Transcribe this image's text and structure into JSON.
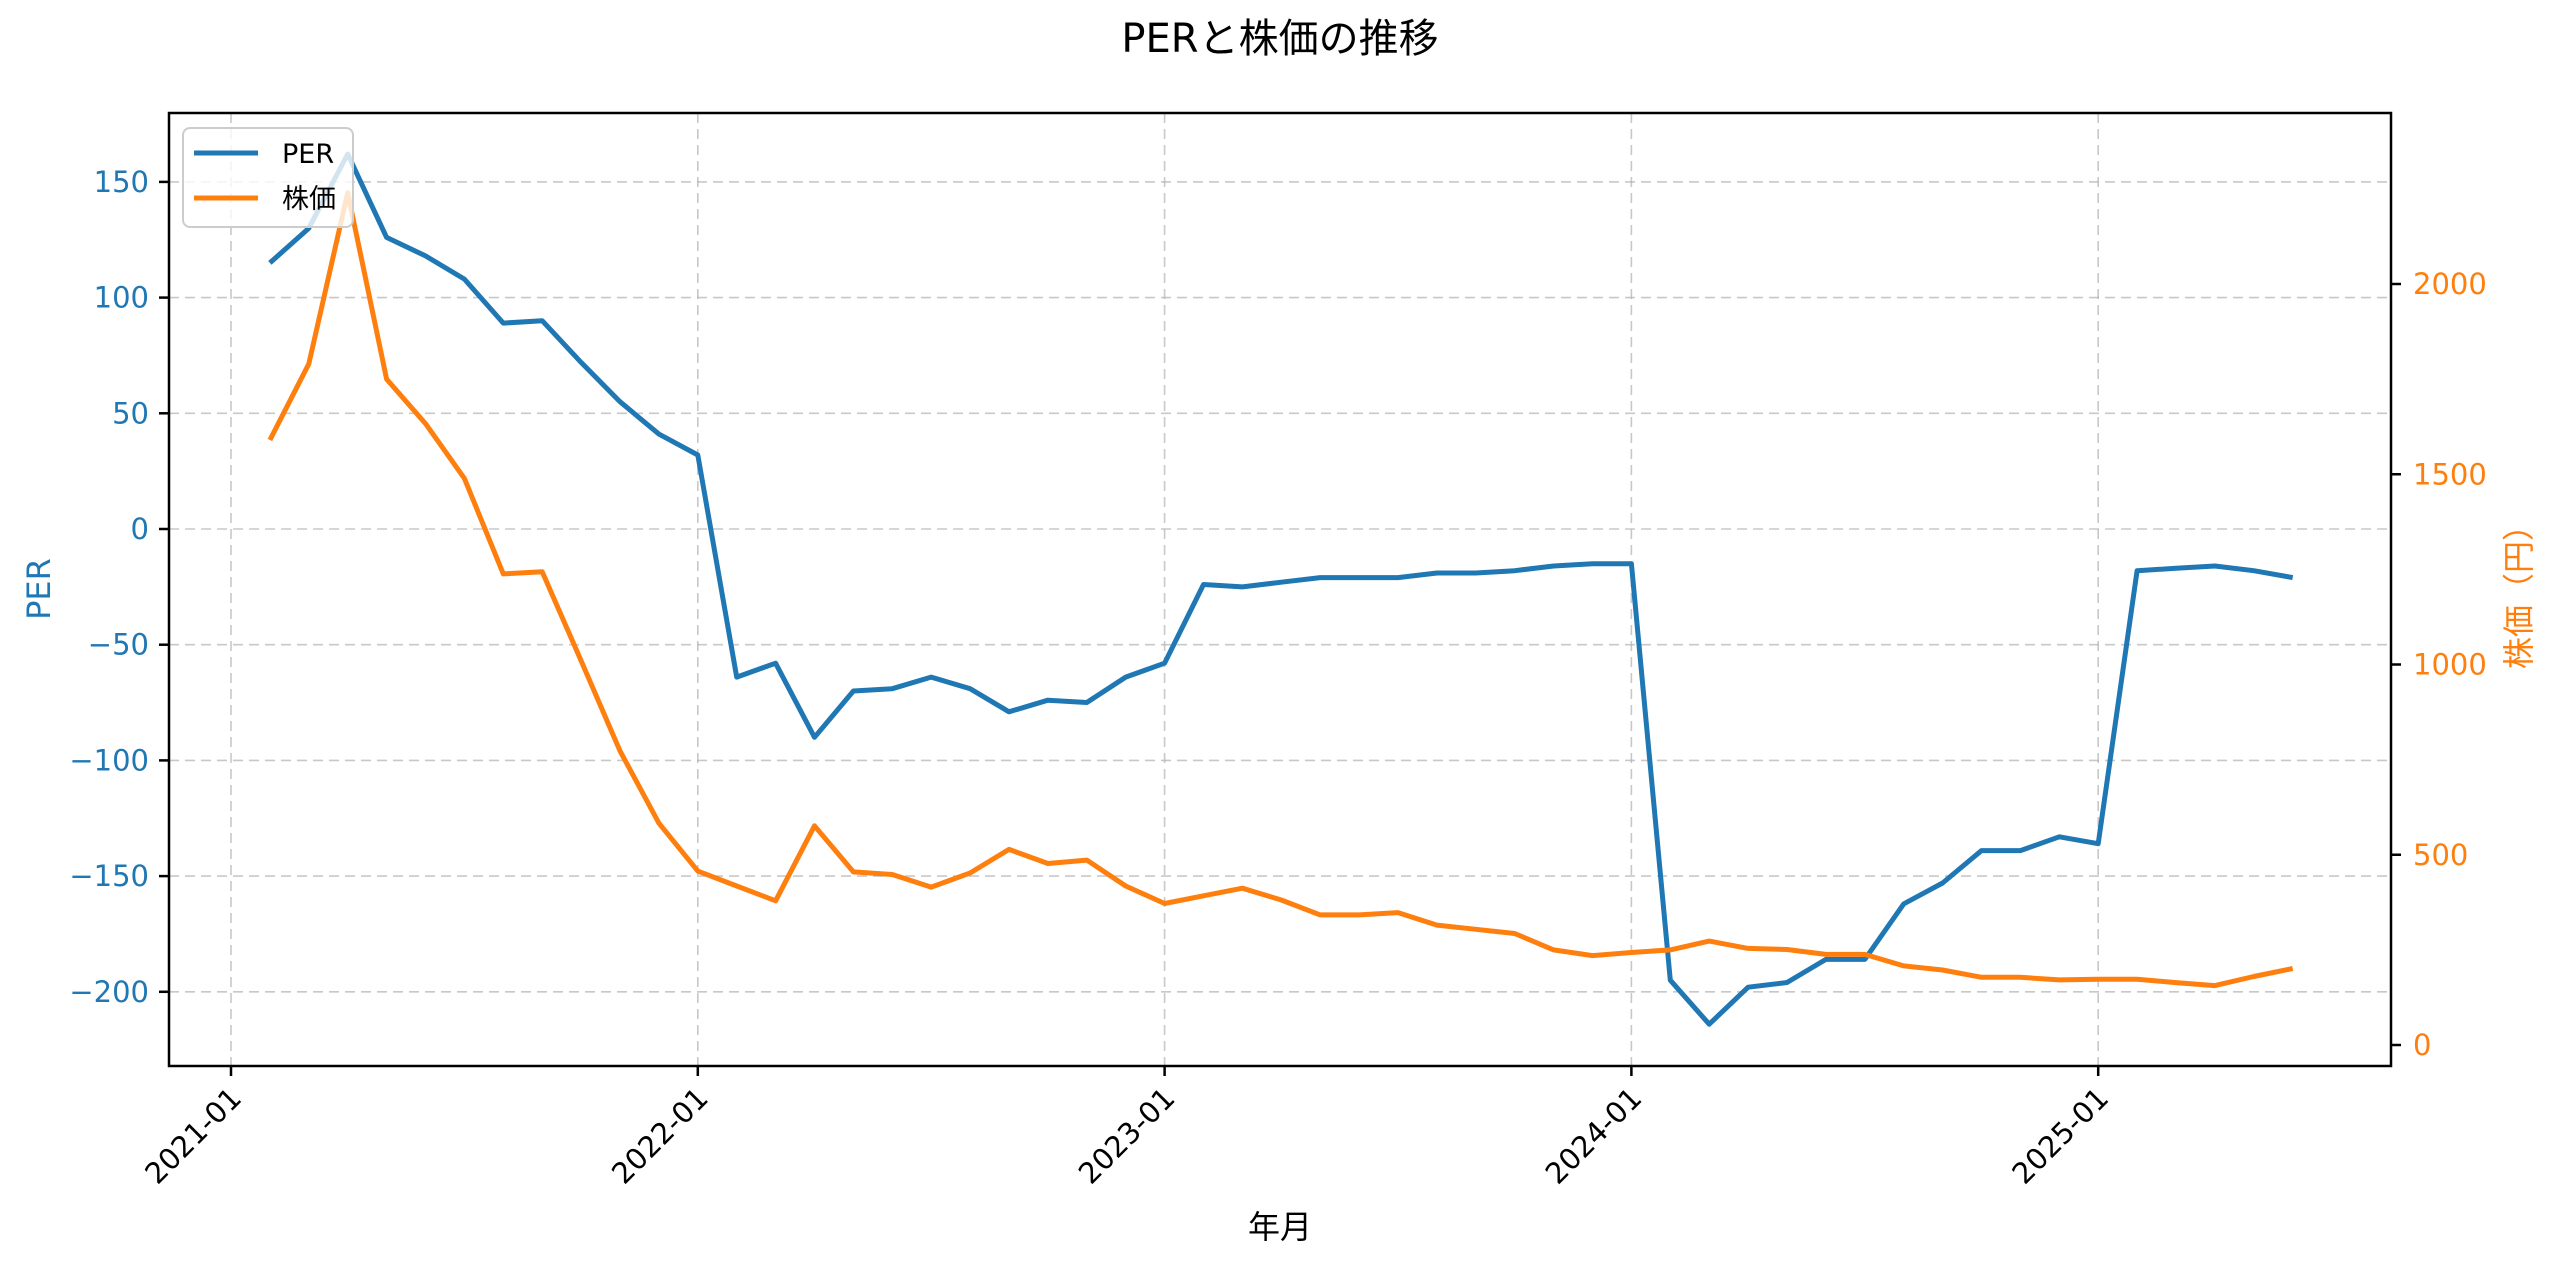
{
  "chart_data": {
    "type": "line",
    "title": "PERと株価の推移",
    "xlabel": "年月",
    "ylabel": "PER",
    "ylabel_right": "株価（円）",
    "x_ticks": [
      "2021-01",
      "2022-01",
      "2023-01",
      "2024-01",
      "2025-01"
    ],
    "y_ticks_left": [
      150,
      100,
      50,
      0,
      -50,
      -100,
      -150,
      -200
    ],
    "y_ticks_right": [
      2000,
      1500,
      1000,
      500,
      0
    ],
    "ylim": [
      -230,
      177
    ],
    "ylim_right": [
      -55,
      2450
    ],
    "grid": true,
    "legend_position": "upper left",
    "x": [
      "2021-02",
      "2021-03",
      "2021-04",
      "2021-05",
      "2021-06",
      "2021-07",
      "2021-08",
      "2021-09",
      "2021-10",
      "2021-11",
      "2021-12",
      "2022-01",
      "2022-02",
      "2022-03",
      "2022-04",
      "2022-05",
      "2022-06",
      "2022-07",
      "2022-08",
      "2022-09",
      "2022-10",
      "2022-11",
      "2022-12",
      "2023-01",
      "2023-02",
      "2023-03",
      "2023-04",
      "2023-05",
      "2023-06",
      "2023-07",
      "2023-08",
      "2023-09",
      "2023-10",
      "2023-11",
      "2023-12",
      "2024-01",
      "2024-02",
      "2024-03",
      "2024-04",
      "2024-05",
      "2024-06",
      "2024-07",
      "2024-08",
      "2024-09",
      "2024-10",
      "2024-11",
      "2024-12",
      "2025-01",
      "2025-02",
      "2025-03",
      "2025-04",
      "2025-05",
      "2025-06"
    ],
    "series": [
      {
        "name": "PER",
        "axis": "left",
        "color": "#1f77b4",
        "values": [
          115,
          130,
          162,
          126,
          118,
          108,
          89,
          90,
          72,
          55,
          41,
          32,
          -64,
          -58,
          -90,
          -70,
          -69,
          -64,
          -69,
          -79,
          -74,
          -75,
          -64,
          -58,
          -24,
          -25,
          -23,
          -21,
          -21,
          -21,
          -19,
          -19,
          -18,
          -16,
          -15,
          -15,
          -195,
          -214,
          -198,
          -196,
          -186,
          -186,
          -162,
          -153,
          -139,
          -139,
          -133,
          -136,
          -18,
          -17,
          -16,
          -18,
          -21
        ]
      },
      {
        "name": "株価",
        "axis": "right",
        "color": "#ff7f0e",
        "values": [
          1590,
          1790,
          2240,
          1750,
          1633,
          1489,
          1238,
          1244,
          1010,
          773,
          583,
          457,
          418,
          379,
          576,
          455,
          448,
          415,
          452,
          514,
          477,
          486,
          418,
          372,
          392,
          412,
          381,
          342,
          342,
          348,
          315,
          304,
          293,
          250,
          235,
          243,
          250,
          273,
          254,
          251,
          238,
          238,
          208,
          197,
          178,
          178,
          171,
          173,
          173,
          164,
          156,
          180,
          201
        ]
      }
    ]
  },
  "legend": {
    "items": [
      {
        "label": "PER",
        "color": "#1f77b4"
      },
      {
        "label": "株価",
        "color": "#ff7f0e"
      }
    ]
  }
}
